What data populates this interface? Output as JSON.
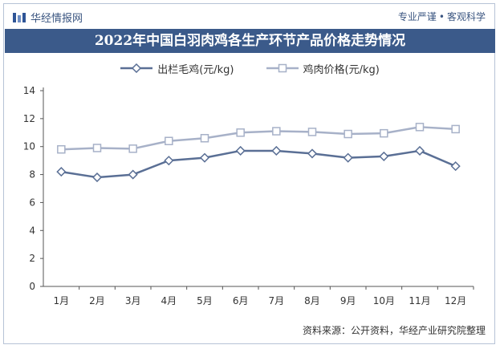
{
  "header": {
    "brand": "华经情报网",
    "slogan_left": "专业严谨",
    "slogan_sep": "•",
    "slogan_right": "客观科学"
  },
  "chart_data": {
    "type": "line",
    "title": "2022年中国白羽肉鸡各生产环节产品价格走势情况",
    "categories": [
      "1月",
      "2月",
      "3月",
      "4月",
      "5月",
      "6月",
      "7月",
      "8月",
      "9月",
      "10月",
      "11月",
      "12月"
    ],
    "series": [
      {
        "name": "出栏毛鸡(元/kg)",
        "color": "#5a6f95",
        "marker": "diamond",
        "values": [
          8.2,
          7.8,
          8.0,
          9.0,
          9.2,
          9.7,
          9.7,
          9.5,
          9.2,
          9.3,
          9.7,
          8.6
        ]
      },
      {
        "name": "鸡肉价格(元/kg)",
        "color": "#a7b1c8",
        "marker": "square",
        "values": [
          9.8,
          9.9,
          9.85,
          10.4,
          10.6,
          11.0,
          11.1,
          11.05,
          10.9,
          10.95,
          11.4,
          11.25
        ]
      }
    ],
    "ylim": [
      0,
      14
    ],
    "yticks": [
      0,
      2,
      4,
      6,
      8,
      10,
      12,
      14
    ],
    "grid": false,
    "legend": "top-center"
  },
  "source": "资料来源：公开资料，华经产业研究院整理"
}
